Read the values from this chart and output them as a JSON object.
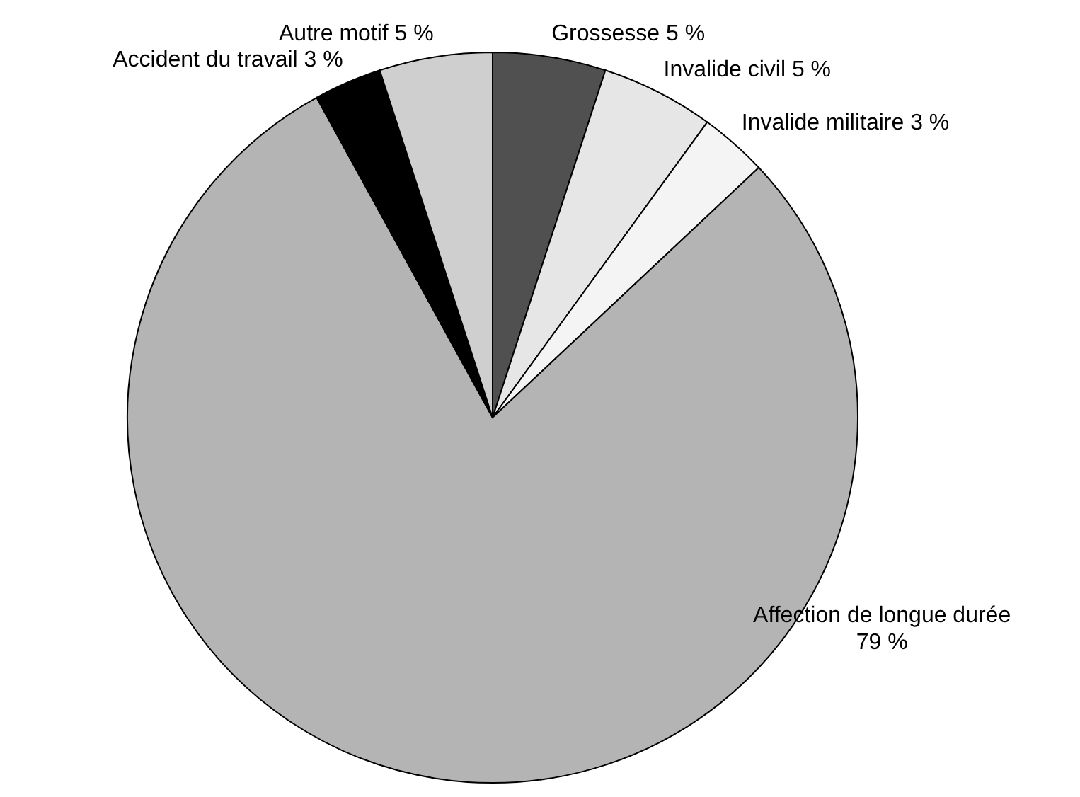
{
  "chart_data": {
    "type": "pie",
    "categories": [
      "Grossesse",
      "Invalide civil",
      "Invalide militaire",
      "Affection de longue durée",
      "Accident du travail",
      "Autre motif"
    ],
    "values": [
      5,
      5,
      3,
      79,
      3,
      5
    ],
    "value_labels": [
      "5 %",
      "5 %",
      "3 %",
      "79 %",
      "3 %",
      "5 %"
    ],
    "colors": [
      "#505050",
      "#e6e6e6",
      "#f4f4f4",
      "#b4b4b4",
      "#000000",
      "#cfcfcf"
    ],
    "legend": false
  }
}
